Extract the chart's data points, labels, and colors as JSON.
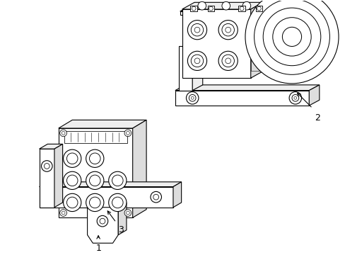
{
  "background_color": "#ffffff",
  "line_color": "#000000",
  "line_width": 0.8,
  "label_1": "1",
  "label_2": "2",
  "label_3": "3",
  "fig_width": 4.89,
  "fig_height": 3.6,
  "dpi": 100
}
